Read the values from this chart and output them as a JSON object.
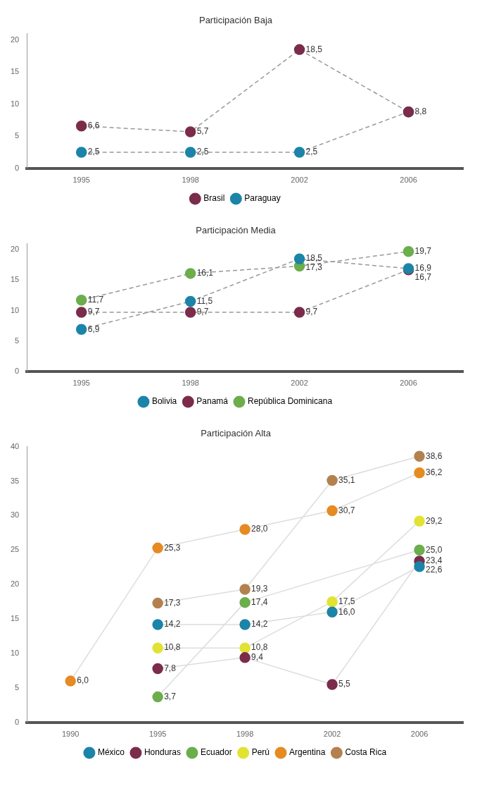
{
  "chart_data": [
    {
      "type": "line",
      "title": "Participación Baja",
      "categories": [
        "1995",
        "1998",
        "2002",
        "2006"
      ],
      "ylim": [
        0,
        21
      ],
      "yticks": [
        0,
        5,
        10,
        15,
        20
      ],
      "grid": false,
      "legend": "bottom",
      "marker": "circle",
      "line_style": "dashed",
      "series": [
        {
          "name": "Brasil",
          "color": "#7b2c4b",
          "values": [
            6.6,
            5.7,
            18.5,
            8.8
          ],
          "value_labels": [
            "6,6",
            "5,7",
            "18,5",
            null
          ]
        },
        {
          "name": "Paraguay",
          "color": "#1b84a8",
          "values": [
            2.5,
            2.5,
            2.5,
            8.8
          ],
          "value_labels": [
            "2,5",
            "2,5",
            "2,5",
            "8,8"
          ]
        }
      ]
    },
    {
      "type": "line",
      "title": "Participación Media",
      "categories": [
        "1995",
        "1998",
        "2002",
        "2006"
      ],
      "ylim": [
        0,
        21
      ],
      "yticks": [
        0,
        5,
        10,
        15,
        20
      ],
      "grid": false,
      "legend": "bottom",
      "marker": "circle",
      "line_style": "dashed",
      "series": [
        {
          "name": "Bolivia",
          "color": "#1b84a8",
          "values": [
            6.9,
            11.5,
            18.5,
            16.9
          ],
          "value_labels": [
            "6,9",
            "11,5",
            "18,5",
            "16,9"
          ]
        },
        {
          "name": "Panamá",
          "color": "#7b2c4b",
          "values": [
            9.7,
            9.7,
            9.7,
            16.7
          ],
          "value_labels": [
            "9,7",
            "9,7",
            "9,7",
            "16,7"
          ]
        },
        {
          "name": "República Dominicana",
          "color": "#6cad4c",
          "values": [
            11.7,
            16.1,
            17.3,
            19.7
          ],
          "value_labels": [
            "11,7",
            "16,1",
            "17,3",
            "19,7"
          ]
        }
      ]
    },
    {
      "type": "line",
      "title": "Participación Alta",
      "categories": [
        "1990",
        "1995",
        "1998",
        "2002",
        "2006"
      ],
      "ylim": [
        0,
        40
      ],
      "yticks": [
        0,
        5,
        10,
        15,
        20,
        25,
        30,
        35,
        40
      ],
      "grid": false,
      "legend": "bottom",
      "marker": "circle",
      "line_style": "solid",
      "series": [
        {
          "name": "México",
          "color": "#1b84a8",
          "values": [
            null,
            14.2,
            14.2,
            16.0,
            22.6
          ],
          "value_labels": [
            null,
            "14,2",
            "14,2",
            "16,0",
            "22,6"
          ]
        },
        {
          "name": "Honduras",
          "color": "#7b2c4b",
          "values": [
            null,
            7.8,
            9.4,
            5.5,
            23.4
          ],
          "value_labels": [
            null,
            "7,8",
            "9,4",
            "5,5",
            "23,4"
          ]
        },
        {
          "name": "Ecuador",
          "color": "#6cad4c",
          "values": [
            null,
            3.7,
            17.4,
            null,
            25.0
          ],
          "value_labels": [
            null,
            "3,7",
            "17,4",
            null,
            "25,0"
          ]
        },
        {
          "name": "Perú",
          "color": "#e2e232",
          "values": [
            null,
            10.8,
            10.8,
            17.5,
            29.2
          ],
          "value_labels": [
            null,
            "10,8",
            "10,8",
            "17,5",
            "29,2"
          ]
        },
        {
          "name": "Argentina",
          "color": "#e68a22",
          "values": [
            6.0,
            25.3,
            28.0,
            30.7,
            36.2
          ],
          "value_labels": [
            "6,0",
            "25,3",
            "28,0",
            "30,7",
            "36,2"
          ]
        },
        {
          "name": "Costa Rica",
          "color": "#b3814f",
          "values": [
            null,
            17.3,
            19.3,
            35.1,
            38.6
          ],
          "value_labels": [
            null,
            "17,3",
            "19,3",
            "35,1",
            "38,6"
          ]
        }
      ]
    }
  ]
}
